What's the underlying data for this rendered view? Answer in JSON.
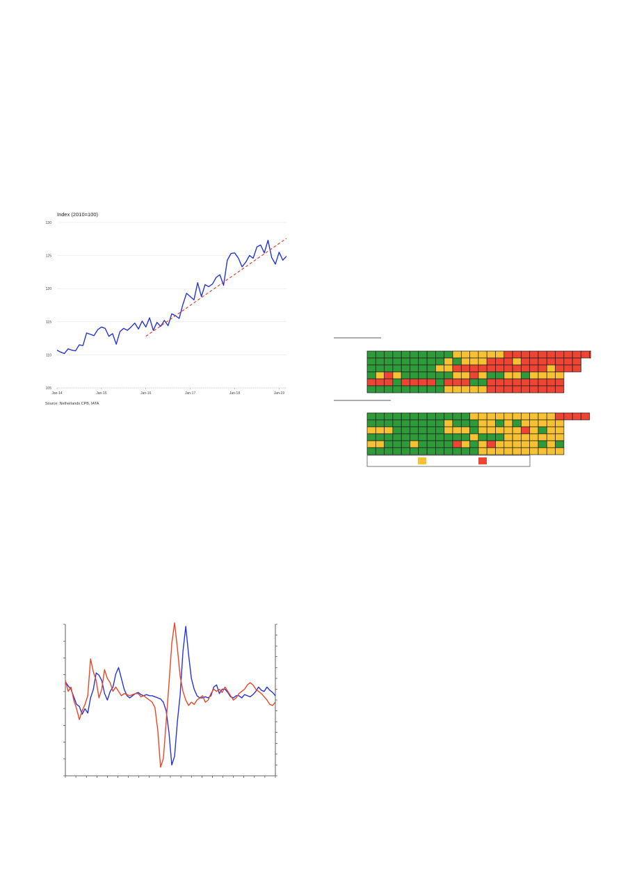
{
  "colors": {
    "line_blue": "#2233dd",
    "trend_red": "#e8402a",
    "line_red": "#ee4422",
    "cell_green": "#2e9a3a",
    "cell_yellow": "#f6c233",
    "cell_red": "#ee4433",
    "grid": "#e6e6e6"
  },
  "chart_data": [
    {
      "type": "line",
      "title": "Index (2010=100)",
      "source": "Source: Netherlands CPB, IATA",
      "ylim": [
        105,
        130
      ],
      "yticks": [
        "130",
        "125",
        "120",
        "115",
        "110",
        "105"
      ],
      "xticks": [
        "Jan-14",
        "Jan-15",
        "Jan-16",
        "Jan-17",
        "Jan-18",
        "Jan-19"
      ],
      "grid": true,
      "series": [
        {
          "kind": "solid",
          "values": [
            110.7,
            110.4,
            110.2,
            110.9,
            110.7,
            110.6,
            111.5,
            111.4,
            113.3,
            113.1,
            112.9,
            113.8,
            114.2,
            114.0,
            112.8,
            113.2,
            111.6,
            113.5,
            114.0,
            113.7,
            114.2,
            114.8,
            113.9,
            115.1,
            114.2,
            115.6,
            113.7,
            114.9,
            114.3,
            115.2,
            114.4,
            116.2,
            115.9,
            115.5,
            117.6,
            119.3,
            118.8,
            118.3,
            120.9,
            118.8,
            120.6,
            120.3,
            120.7,
            121.7,
            122.1,
            120.5,
            124.3,
            125.3,
            125.4,
            124.6,
            123.3,
            124.0,
            125.0,
            124.6,
            126.3,
            126.6,
            125.4,
            127.3,
            124.7,
            123.7,
            125.5,
            124.3,
            124.9
          ]
        },
        {
          "kind": "dashed",
          "x_start": 24,
          "x_end": 62,
          "values": [
            112.8,
            127.6
          ]
        }
      ]
    },
    {
      "type": "heatmap",
      "blocks": [
        {
          "rows": [
            "GGGGGGGGGGYYYYYYRRRRRRRRRRRRR",
            "GGGGGGGGGYGYYYRRRYRRRRRRR",
            "GGGGGGGGYYRRRRRRRRRRRYRRR",
            "GYRYGGGGGGYYRYGGYYGYYYY",
            "RRRGRRRRGRRRGGRRRRRRRRR",
            "GGGGGGGGGYYYYYRRRRRRRRR"
          ]
        },
        {
          "rows": [
            "GGGGGGGGGGGGYYYYYYYYYYRRRR",
            "GGGGGGGGGYGGGYYGYGYYYYY",
            "YYYGGGGGGYYYGYYYYYRYGYY",
            "GGGGGGGGGGGGYGGGYYYYYYY",
            "YYGGGYGGGGRYGYRYYYYYGYG",
            "GGGGGGGGGGGGGYYYYYYYYYY"
          ]
        }
      ]
    },
    {
      "type": "line",
      "series": [
        {
          "color": "blue",
          "values": [
            57,
            53,
            50,
            43,
            36,
            34,
            27,
            32,
            28,
            42,
            50,
            65,
            63,
            58,
            46,
            40,
            48,
            52,
            64,
            70,
            60,
            50,
            44,
            42,
            44,
            46,
            47,
            45,
            44,
            45,
            44,
            44,
            43,
            42,
            41,
            38,
            30,
            10,
            -20,
            -12,
            20,
            45,
            85,
            108,
            82,
            60,
            50,
            44,
            42,
            42,
            43,
            42,
            44,
            52,
            54,
            46,
            50,
            50,
            47,
            43,
            42,
            44,
            44,
            42,
            45,
            44,
            43,
            45,
            48,
            52,
            49,
            48,
            52,
            49,
            47,
            44
          ]
        },
        {
          "color": "red",
          "values": [
            58,
            48,
            52,
            40,
            32,
            22,
            30,
            36,
            44,
            78,
            66,
            58,
            42,
            50,
            68,
            60,
            56,
            48,
            52,
            48,
            44,
            46,
            45,
            44,
            45,
            46,
            46,
            43,
            44,
            42,
            40,
            38,
            33,
            12,
            -22,
            -14,
            20,
            55,
            92,
            112,
            88,
            62,
            48,
            40,
            35,
            38,
            36,
            40,
            42,
            44,
            38,
            40,
            46,
            50,
            48,
            50,
            47,
            52,
            48,
            44,
            40,
            42,
            46,
            48,
            50,
            54,
            56,
            54,
            50,
            48,
            46,
            43,
            40,
            36,
            35,
            38
          ]
        }
      ]
    }
  ]
}
